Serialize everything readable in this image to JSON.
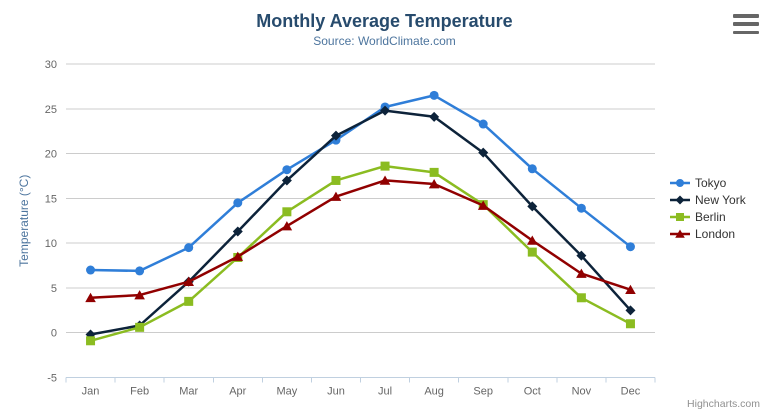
{
  "header": {
    "title": "Monthly Average Temperature",
    "subtitle": "Source: WorldClimate.com"
  },
  "menu": {
    "icon": "hamburger-icon"
  },
  "credits": {
    "label": "Highcharts.com"
  },
  "chart_data": {
    "type": "line",
    "title": "Monthly Average Temperature",
    "subtitle": "Source: WorldClimate.com",
    "categories": [
      "Jan",
      "Feb",
      "Mar",
      "Apr",
      "May",
      "Jun",
      "Jul",
      "Aug",
      "Sep",
      "Oct",
      "Nov",
      "Dec"
    ],
    "series": [
      {
        "name": "Tokyo",
        "color": "#2f7ed8",
        "marker": "circle",
        "values": [
          7.0,
          6.9,
          9.5,
          14.5,
          18.2,
          21.5,
          25.2,
          26.5,
          23.3,
          18.3,
          13.9,
          9.6
        ]
      },
      {
        "name": "New York",
        "color": "#0d233a",
        "marker": "diamond",
        "values": [
          -0.2,
          0.8,
          5.7,
          11.3,
          17.0,
          22.0,
          24.8,
          24.1,
          20.1,
          14.1,
          8.6,
          2.5
        ]
      },
      {
        "name": "Berlin",
        "color": "#8bbc21",
        "marker": "square",
        "values": [
          -0.9,
          0.6,
          3.5,
          8.4,
          13.5,
          17.0,
          18.6,
          17.9,
          14.3,
          9.0,
          3.9,
          1.0
        ]
      },
      {
        "name": "London",
        "color": "#910000",
        "marker": "triangle",
        "values": [
          3.9,
          4.2,
          5.7,
          8.5,
          11.9,
          15.2,
          17.0,
          16.6,
          14.2,
          10.3,
          6.6,
          4.8
        ]
      }
    ],
    "xlabel": "",
    "ylabel": "Temperature (°C)",
    "ylim": [
      -5,
      30
    ],
    "ytick_step": 5,
    "grid": true,
    "legend_position": "right",
    "style": {
      "grid_color": "#cccccc",
      "axis_line_color": "#c0d0e0",
      "tick_color": "#c0d0e0",
      "axis_label_color": "#666666",
      "axis_title_color": "#4d759e",
      "title_color": "#274b6d",
      "subtitle_color": "#4d759e",
      "legend_text_color": "#333333",
      "credits_color": "#909090"
    }
  }
}
